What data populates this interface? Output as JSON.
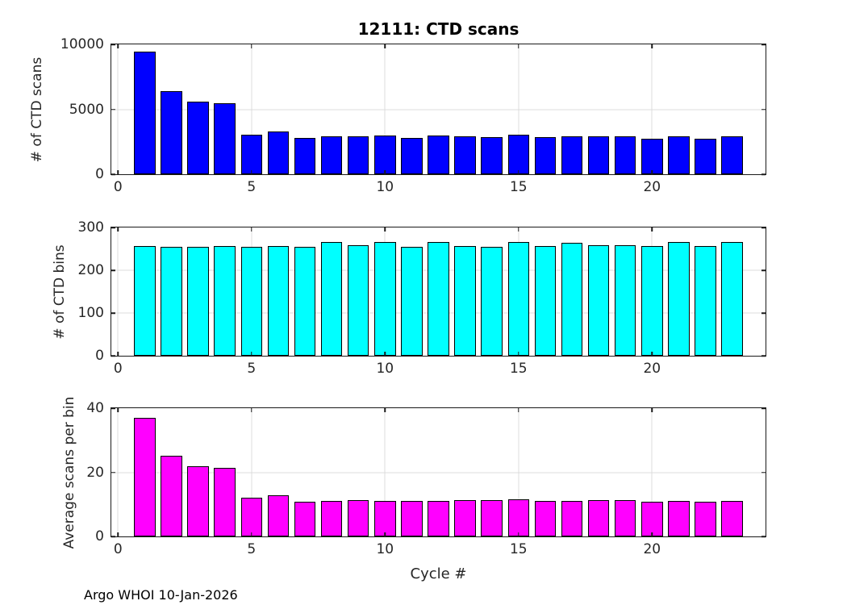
{
  "figure": {
    "footer": "Argo WHOI 10-Jan-2026",
    "background": "#ffffff",
    "axis_color": "#1a1a1a",
    "grid_color": "#dcdcdc"
  },
  "chart_data": [
    {
      "type": "bar",
      "name": "ctd-scans",
      "title": "12111: CTD scans",
      "xlabel": "",
      "ylabel": "# of CTD scans",
      "bar_color": "#0000FF",
      "bar_width": 0.8,
      "grid": true,
      "legend": null,
      "xlim": [
        -0.25,
        24.25
      ],
      "ylim": [
        0,
        10000
      ],
      "xticks": [
        0,
        5,
        10,
        15,
        20
      ],
      "yticks": [
        0,
        5000,
        10000
      ],
      "x": [
        1,
        2,
        3,
        4,
        5,
        6,
        7,
        8,
        9,
        10,
        11,
        12,
        13,
        14,
        15,
        16,
        17,
        18,
        19,
        20,
        21,
        22,
        23
      ],
      "values": [
        9450,
        6400,
        5600,
        5480,
        3050,
        3280,
        2780,
        2920,
        2900,
        2960,
        2820,
        2960,
        2900,
        2850,
        3060,
        2850,
        2920,
        2920,
        2920,
        2740,
        2940,
        2760,
        2940
      ]
    },
    {
      "type": "bar",
      "name": "ctd-bins",
      "title": "",
      "xlabel": "",
      "ylabel": "# of CTD bins",
      "bar_color": "#00FFFF",
      "bar_width": 0.8,
      "grid": true,
      "legend": null,
      "xlim": [
        -0.25,
        24.25
      ],
      "ylim": [
        0,
        300
      ],
      "xticks": [
        0,
        5,
        10,
        15,
        20
      ],
      "yticks": [
        0,
        100,
        200,
        300
      ],
      "x": [
        1,
        2,
        3,
        4,
        5,
        6,
        7,
        8,
        9,
        10,
        11,
        12,
        13,
        14,
        15,
        16,
        17,
        18,
        19,
        20,
        21,
        22,
        23
      ],
      "values": [
        256,
        254,
        254,
        256,
        254,
        256,
        254,
        266,
        259,
        266,
        254,
        266,
        257,
        254,
        266,
        256,
        264,
        259,
        259,
        256,
        266,
        256,
        266
      ]
    },
    {
      "type": "bar",
      "name": "avg-scans-per-bin",
      "title": "",
      "xlabel": "Cycle #",
      "ylabel": "Average scans per bin",
      "bar_color": "#FF00FF",
      "bar_width": 0.8,
      "grid": true,
      "legend": null,
      "xlim": [
        -0.25,
        24.25
      ],
      "ylim": [
        0,
        40
      ],
      "xticks": [
        0,
        5,
        10,
        15,
        20
      ],
      "yticks": [
        0,
        20,
        40
      ],
      "x": [
        1,
        2,
        3,
        4,
        5,
        6,
        7,
        8,
        9,
        10,
        11,
        12,
        13,
        14,
        15,
        16,
        17,
        18,
        19,
        20,
        21,
        22,
        23
      ],
      "values": [
        36.9,
        25.2,
        22.0,
        21.4,
        12.0,
        12.8,
        10.9,
        11.0,
        11.2,
        11.1,
        11.1,
        11.1,
        11.3,
        11.2,
        11.5,
        11.1,
        11.1,
        11.3,
        11.3,
        10.7,
        11.1,
        10.8,
        11.1
      ]
    }
  ]
}
